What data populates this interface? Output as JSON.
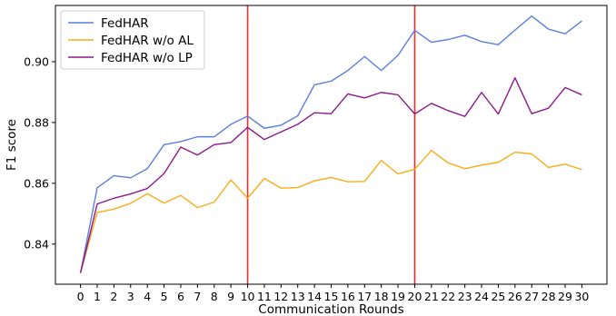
{
  "chart_data": {
    "type": "line",
    "xlabel": "Communication Rounds",
    "ylabel": "F1 score",
    "x": [
      0,
      1,
      2,
      3,
      4,
      5,
      6,
      7,
      8,
      9,
      10,
      11,
      12,
      13,
      14,
      15,
      16,
      17,
      18,
      19,
      20,
      21,
      22,
      23,
      24,
      25,
      26,
      27,
      28,
      29,
      30
    ],
    "x_ticks": [
      "0",
      "1",
      "2",
      "3",
      "4",
      "5",
      "6",
      "7",
      "8",
      "9",
      "10",
      "11",
      "12",
      "13",
      "14",
      "15",
      "16",
      "17",
      "18",
      "19",
      "20",
      "21",
      "22",
      "23",
      "24",
      "25",
      "26",
      "27",
      "28",
      "29",
      "30"
    ],
    "xlim": [
      -1.5,
      31.5
    ],
    "ylim": [
      0.8268,
      0.9185
    ],
    "y_ticks": [
      0.84,
      0.86,
      0.88,
      0.9
    ],
    "y_tick_labels": [
      "0.84",
      "0.86",
      "0.88",
      "0.90"
    ],
    "grid": false,
    "legend_position": "top-left",
    "vertical_lines": [
      10,
      20
    ],
    "vertical_line_color": "#e8302a",
    "series": [
      {
        "name": "FedHAR",
        "color": "#5b7fdc",
        "values": [
          0.8305,
          0.8585,
          0.8625,
          0.8618,
          0.8648,
          0.8727,
          0.8737,
          0.8753,
          0.8753,
          0.8794,
          0.8821,
          0.8781,
          0.8791,
          0.8822,
          0.8924,
          0.8936,
          0.8971,
          0.9017,
          0.8971,
          0.9021,
          0.9103,
          0.9064,
          0.9073,
          0.9087,
          0.9066,
          0.9056,
          0.9104,
          0.915,
          0.9107,
          0.9092,
          0.9134
        ]
      },
      {
        "name": "FedHAR w/o AL",
        "color": "#fbab18",
        "values": [
          0.8305,
          0.8504,
          0.8515,
          0.8534,
          0.8566,
          0.8535,
          0.856,
          0.852,
          0.8538,
          0.8611,
          0.8551,
          0.8616,
          0.8584,
          0.8586,
          0.8608,
          0.8619,
          0.8605,
          0.8606,
          0.8675,
          0.8631,
          0.8646,
          0.8708,
          0.8667,
          0.8648,
          0.866,
          0.8669,
          0.8702,
          0.8697,
          0.8652,
          0.8663,
          0.8645
        ]
      },
      {
        "name": "FedHAR w/o LP",
        "color": "#8b1a8b",
        "values": [
          0.8305,
          0.8532,
          0.8551,
          0.8565,
          0.8583,
          0.8632,
          0.8719,
          0.8693,
          0.8727,
          0.8734,
          0.8784,
          0.8744,
          0.8769,
          0.8794,
          0.8832,
          0.8829,
          0.8894,
          0.8881,
          0.8899,
          0.8891,
          0.8828,
          0.8863,
          0.8839,
          0.882,
          0.8899,
          0.8828,
          0.8947,
          0.8829,
          0.8847,
          0.8915,
          0.8891
        ]
      }
    ]
  }
}
